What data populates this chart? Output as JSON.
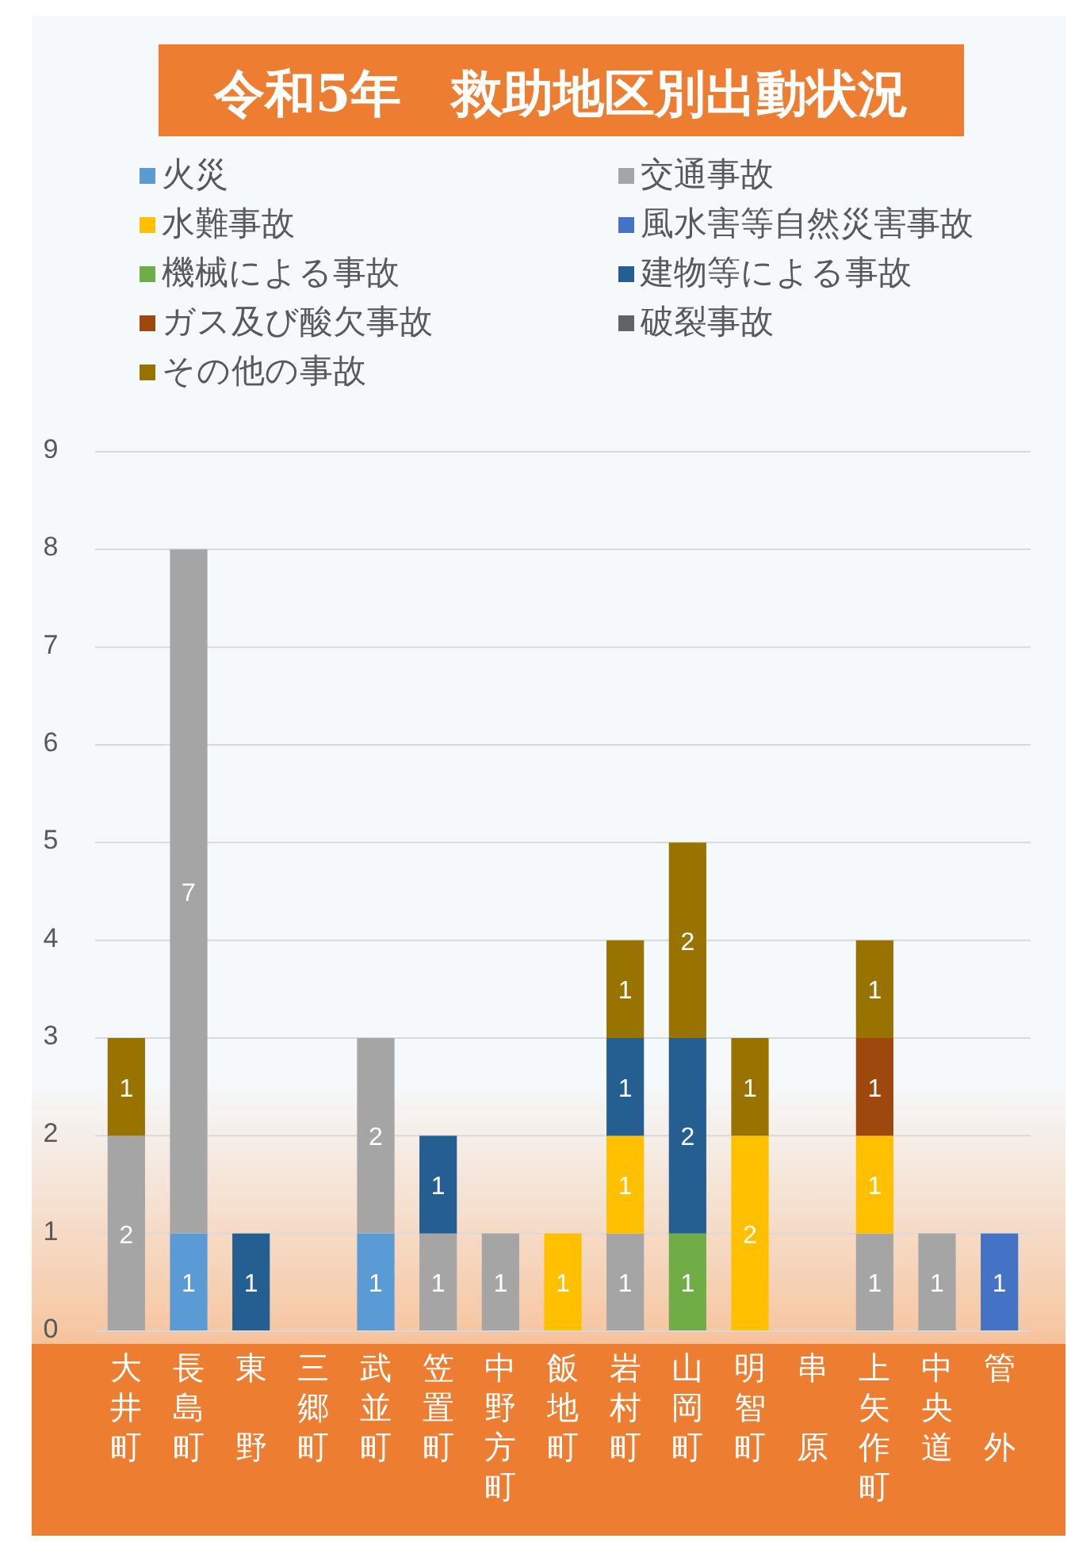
{
  "chart_data": {
    "type": "bar",
    "stacked": true,
    "title": "令和5年　救助地区別出動状況",
    "categories": [
      "大井町",
      "長島町",
      "東野",
      "三郷町",
      "武並町",
      "笠置町",
      "中野方町",
      "飯地町",
      "岩村町",
      "山岡町",
      "明智町",
      "串原",
      "上矢作町",
      "中央道",
      "管外"
    ],
    "series": [
      {
        "name": "火災",
        "color": "#5b9bd5",
        "values": [
          null,
          1,
          null,
          null,
          1,
          null,
          null,
          null,
          null,
          null,
          null,
          null,
          null,
          null,
          null
        ]
      },
      {
        "name": "交通事故",
        "color": "#a5a5a5",
        "values": [
          2,
          7,
          null,
          null,
          2,
          1,
          1,
          null,
          1,
          null,
          null,
          null,
          1,
          1,
          null
        ]
      },
      {
        "name": "水難事故",
        "color": "#ffc000",
        "values": [
          null,
          null,
          null,
          null,
          null,
          null,
          null,
          1,
          1,
          null,
          2,
          null,
          1,
          null,
          null
        ]
      },
      {
        "name": "風水害等自然災害事故",
        "color": "#4472c4",
        "values": [
          null,
          null,
          null,
          null,
          null,
          null,
          null,
          null,
          null,
          null,
          null,
          null,
          null,
          null,
          1
        ]
      },
      {
        "name": "機械による事故",
        "color": "#70ad47",
        "values": [
          null,
          null,
          null,
          null,
          null,
          null,
          null,
          null,
          null,
          1,
          null,
          null,
          null,
          null,
          null
        ]
      },
      {
        "name": "建物等による事故",
        "color": "#255e91",
        "values": [
          null,
          null,
          1,
          null,
          null,
          1,
          null,
          null,
          1,
          2,
          null,
          null,
          null,
          null,
          null
        ]
      },
      {
        "name": "ガス及び酸欠事故",
        "color": "#9e480e",
        "values": [
          null,
          null,
          null,
          null,
          null,
          null,
          null,
          null,
          null,
          null,
          null,
          null,
          1,
          null,
          null
        ]
      },
      {
        "name": "破裂事故",
        "color": "#636363",
        "values": [
          null,
          null,
          null,
          null,
          null,
          null,
          null,
          null,
          null,
          null,
          null,
          null,
          null,
          null,
          null
        ]
      },
      {
        "name": "その他の事故",
        "color": "#997300",
        "values": [
          1,
          null,
          null,
          null,
          null,
          null,
          null,
          null,
          1,
          2,
          1,
          null,
          1,
          null,
          null
        ]
      }
    ],
    "ylim": [
      0,
      9
    ],
    "yticks": [
      0,
      1,
      2,
      3,
      4,
      5,
      6,
      7,
      8,
      9
    ],
    "grid": "y",
    "legend": "top",
    "data_labels": true
  }
}
